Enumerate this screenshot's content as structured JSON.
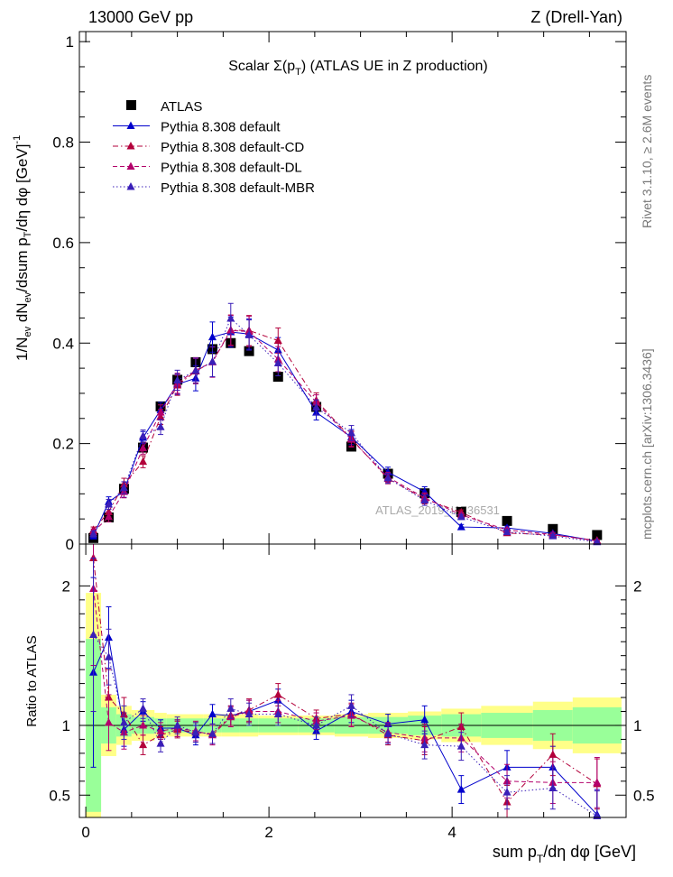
{
  "header": {
    "left": "13000 GeV pp",
    "right": "Z (Drell-Yan)"
  },
  "side_text": {
    "top": "Rivet 3.1.10, ≥ 2.6M events",
    "bottom": "mcplots.cern.ch [arXiv:1306.3436]"
  },
  "chart_data": [
    {
      "type": "scatter",
      "title": "Scalar Σ(p_T) (ATLAS UE in Z production)",
      "watermark": "ATLAS_2019_I1736531",
      "ylabel": "1/N_ev dN_ev/dsum p_T/dη dφ [GeV]^-1",
      "xlim": [
        -0.07,
        5.9
      ],
      "ylim": [
        0,
        1.02
      ],
      "yticks": [
        "0",
        "0.2",
        "0.4",
        "0.6",
        "0.8",
        "1"
      ],
      "grid": false,
      "legend_position": "top-left",
      "x": [
        0.083,
        0.25,
        0.417,
        0.625,
        0.817,
        1.0,
        1.2,
        1.383,
        1.583,
        1.783,
        2.1,
        2.517,
        2.9,
        3.3,
        3.7,
        4.1,
        4.6,
        5.1,
        5.583
      ],
      "series": [
        {
          "name": "ATLAS",
          "color": "#000000",
          "marker": "square",
          "line": "none",
          "values": [
            0.012,
            0.053,
            0.11,
            0.192,
            0.274,
            0.327,
            0.362,
            0.388,
            0.4,
            0.384,
            0.333,
            0.273,
            0.194,
            0.14,
            0.101,
            0.064,
            0.046,
            0.03,
            0.018
          ]
        },
        {
          "name": "Pythia 8.308 default",
          "color": "#0000cc",
          "marker": "triangle",
          "line": "solid",
          "values": [
            0.016,
            0.084,
            0.105,
            0.212,
            0.267,
            0.318,
            0.33,
            0.412,
            0.422,
            0.418,
            0.386,
            0.262,
            0.213,
            0.143,
            0.104,
            0.034,
            0.032,
            0.021,
            0.006
          ],
          "errors": [
            0.006,
            0.01,
            0.012,
            0.012,
            0.015,
            0.02,
            0.025,
            0.03,
            0.03,
            0.03,
            0.025,
            0.015,
            0.015,
            0.01,
            0.01,
            0.005,
            0.004,
            0.003,
            0.002
          ]
        },
        {
          "name": "Pythia 8.308 default-CD",
          "color": "#b3003b",
          "marker": "triangle",
          "line": "dashdot",
          "values": [
            0.028,
            0.064,
            0.119,
            0.164,
            0.253,
            0.316,
            0.344,
            0.363,
            0.426,
            0.425,
            0.405,
            0.286,
            0.21,
            0.13,
            0.09,
            0.063,
            0.022,
            0.018,
            0.007
          ],
          "errors": [
            0.006,
            0.01,
            0.012,
            0.012,
            0.015,
            0.02,
            0.025,
            0.03,
            0.03,
            0.03,
            0.025,
            0.015,
            0.015,
            0.01,
            0.01,
            0.005,
            0.004,
            0.003,
            0.002
          ]
        },
        {
          "name": "Pythia 8.308 default-DL",
          "color": "#b3006b",
          "marker": "triangle",
          "line": "dashed",
          "values": [
            0.024,
            0.054,
            0.104,
            0.191,
            0.262,
            0.32,
            0.346,
            0.362,
            0.425,
            0.423,
            0.368,
            0.282,
            0.208,
            0.133,
            0.092,
            0.058,
            0.028,
            0.019,
            0.006
          ],
          "errors": [
            0.006,
            0.01,
            0.012,
            0.012,
            0.015,
            0.02,
            0.025,
            0.03,
            0.03,
            0.03,
            0.025,
            0.015,
            0.015,
            0.01,
            0.01,
            0.005,
            0.004,
            0.003,
            0.002
          ]
        },
        {
          "name": "Pythia 8.308 default-MBR",
          "color": "#3a1fb8",
          "marker": "triangle",
          "line": "dotted",
          "values": [
            0.02,
            0.079,
            0.112,
            0.215,
            0.233,
            0.326,
            0.345,
            0.363,
            0.449,
            0.416,
            0.36,
            0.272,
            0.221,
            0.131,
            0.087,
            0.054,
            0.024,
            0.016,
            0.004
          ],
          "errors": [
            0.006,
            0.01,
            0.012,
            0.012,
            0.015,
            0.02,
            0.025,
            0.03,
            0.03,
            0.03,
            0.025,
            0.015,
            0.015,
            0.01,
            0.01,
            0.005,
            0.004,
            0.003,
            0.002
          ]
        }
      ]
    },
    {
      "type": "scatter",
      "xlabel": "sum p_T/dη dφ [GeV]",
      "ylabel": "Ratio to ATLAS",
      "xlim": [
        -0.07,
        5.9
      ],
      "ylim": [
        0.34,
        2.3
      ],
      "xticks": [
        "0",
        "2",
        "4"
      ],
      "yticks": [
        "0.5",
        "1",
        "2"
      ],
      "reference_line": 1,
      "bands": {
        "x_edges": [
          0,
          0.167,
          0.333,
          0.5,
          0.75,
          0.883,
          1.117,
          1.283,
          1.483,
          1.683,
          1.883,
          2.317,
          2.717,
          3.083,
          3.517,
          3.883,
          4.317,
          4.883,
          5.317,
          5.85
        ],
        "inner": [
          0.62,
          0.13,
          0.08,
          0.06,
          0.05,
          0.05,
          0.05,
          0.05,
          0.05,
          0.05,
          0.05,
          0.05,
          0.06,
          0.06,
          0.07,
          0.08,
          0.09,
          0.11,
          0.13
        ],
        "outer": [
          0.95,
          0.22,
          0.14,
          0.11,
          0.09,
          0.08,
          0.08,
          0.08,
          0.08,
          0.08,
          0.07,
          0.07,
          0.08,
          0.09,
          0.1,
          0.12,
          0.14,
          0.17,
          0.2
        ],
        "inner_color": "#99ff99",
        "outer_color": "#ffff88"
      },
      "series": [
        {
          "name": "Pythia 8.308 default",
          "color": "#0000cc",
          "line": "solid",
          "values": [
            1.38,
            1.63,
            0.97,
            1.1,
            0.98,
            0.98,
            0.93,
            1.08,
            1.07,
            1.1,
            1.18,
            0.96,
            1.1,
            1.01,
            1.04,
            0.54,
            0.7,
            0.7,
            0.36
          ],
          "errors": [
            0.68,
            0.22,
            0.12,
            0.07,
            0.06,
            0.06,
            0.07,
            0.07,
            0.07,
            0.08,
            0.08,
            0.06,
            0.08,
            0.07,
            0.1,
            0.1,
            0.12,
            0.15,
            0.18
          ]
        },
        {
          "name": "Pythia 8.308 default-CD",
          "color": "#b3003b",
          "line": "dashdot",
          "values": [
            2.2,
            1.2,
            1.08,
            0.86,
            0.93,
            0.97,
            0.95,
            0.94,
            1.07,
            1.11,
            1.22,
            1.05,
            1.08,
            0.93,
            0.89,
            0.99,
            0.45,
            0.79,
            0.58
          ],
          "errors": [
            0.55,
            0.2,
            0.12,
            0.07,
            0.06,
            0.06,
            0.07,
            0.07,
            0.07,
            0.08,
            0.08,
            0.06,
            0.08,
            0.07,
            0.1,
            0.1,
            0.12,
            0.15,
            0.18
          ]
        },
        {
          "name": "Pythia 8.308 default-DL",
          "color": "#b3006b",
          "line": "dashed",
          "values": [
            1.98,
            1.02,
            0.95,
            1.0,
            0.96,
            0.98,
            0.96,
            0.93,
            1.06,
            1.1,
            1.1,
            1.03,
            1.07,
            0.95,
            0.91,
            0.91,
            0.6,
            0.59,
            0.59
          ],
          "errors": [
            0.55,
            0.2,
            0.12,
            0.07,
            0.06,
            0.06,
            0.07,
            0.07,
            0.07,
            0.08,
            0.08,
            0.06,
            0.08,
            0.07,
            0.1,
            0.1,
            0.12,
            0.15,
            0.18
          ]
        },
        {
          "name": "Pythia 8.308 default-MBR",
          "color": "#3a1fb8",
          "line": "dotted",
          "values": [
            1.65,
            1.49,
            1.02,
            1.12,
            0.87,
            1.0,
            0.95,
            0.94,
            1.12,
            1.08,
            1.08,
            1.0,
            1.14,
            0.94,
            0.86,
            0.85,
            0.52,
            0.55,
            0.35
          ],
          "errors": [
            0.55,
            0.2,
            0.12,
            0.07,
            0.06,
            0.06,
            0.07,
            0.07,
            0.07,
            0.08,
            0.08,
            0.06,
            0.08,
            0.07,
            0.1,
            0.1,
            0.12,
            0.15,
            0.18
          ]
        }
      ]
    }
  ]
}
